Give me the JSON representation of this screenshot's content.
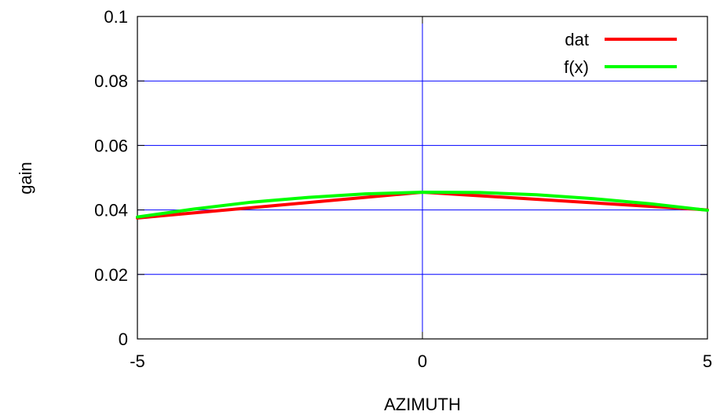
{
  "chart_data": {
    "type": "line",
    "title": "",
    "xlabel": "AZIMUTH",
    "ylabel": "gain",
    "xlim": [
      -5,
      5
    ],
    "ylim": [
      0,
      0.1
    ],
    "x_ticks": [
      "-5",
      "0",
      "5"
    ],
    "y_ticks": [
      "0",
      "0.02",
      "0.04",
      "0.06",
      "0.08",
      "0.1"
    ],
    "grid": true,
    "legend_position": "top-right",
    "series": [
      {
        "name": "dat",
        "color": "#ff0000",
        "x": [
          -5,
          0,
          5
        ],
        "y": [
          0.0375,
          0.0455,
          0.04
        ]
      },
      {
        "name": "f(x)",
        "color": "#00ff00",
        "x": [
          -5,
          -4,
          -3,
          -2,
          -1,
          0,
          1,
          2,
          3,
          4,
          5
        ],
        "y": [
          0.0378,
          0.0403,
          0.0424,
          0.0439,
          0.045,
          0.0455,
          0.0454,
          0.0447,
          0.0435,
          0.0419,
          0.0399
        ]
      }
    ]
  }
}
